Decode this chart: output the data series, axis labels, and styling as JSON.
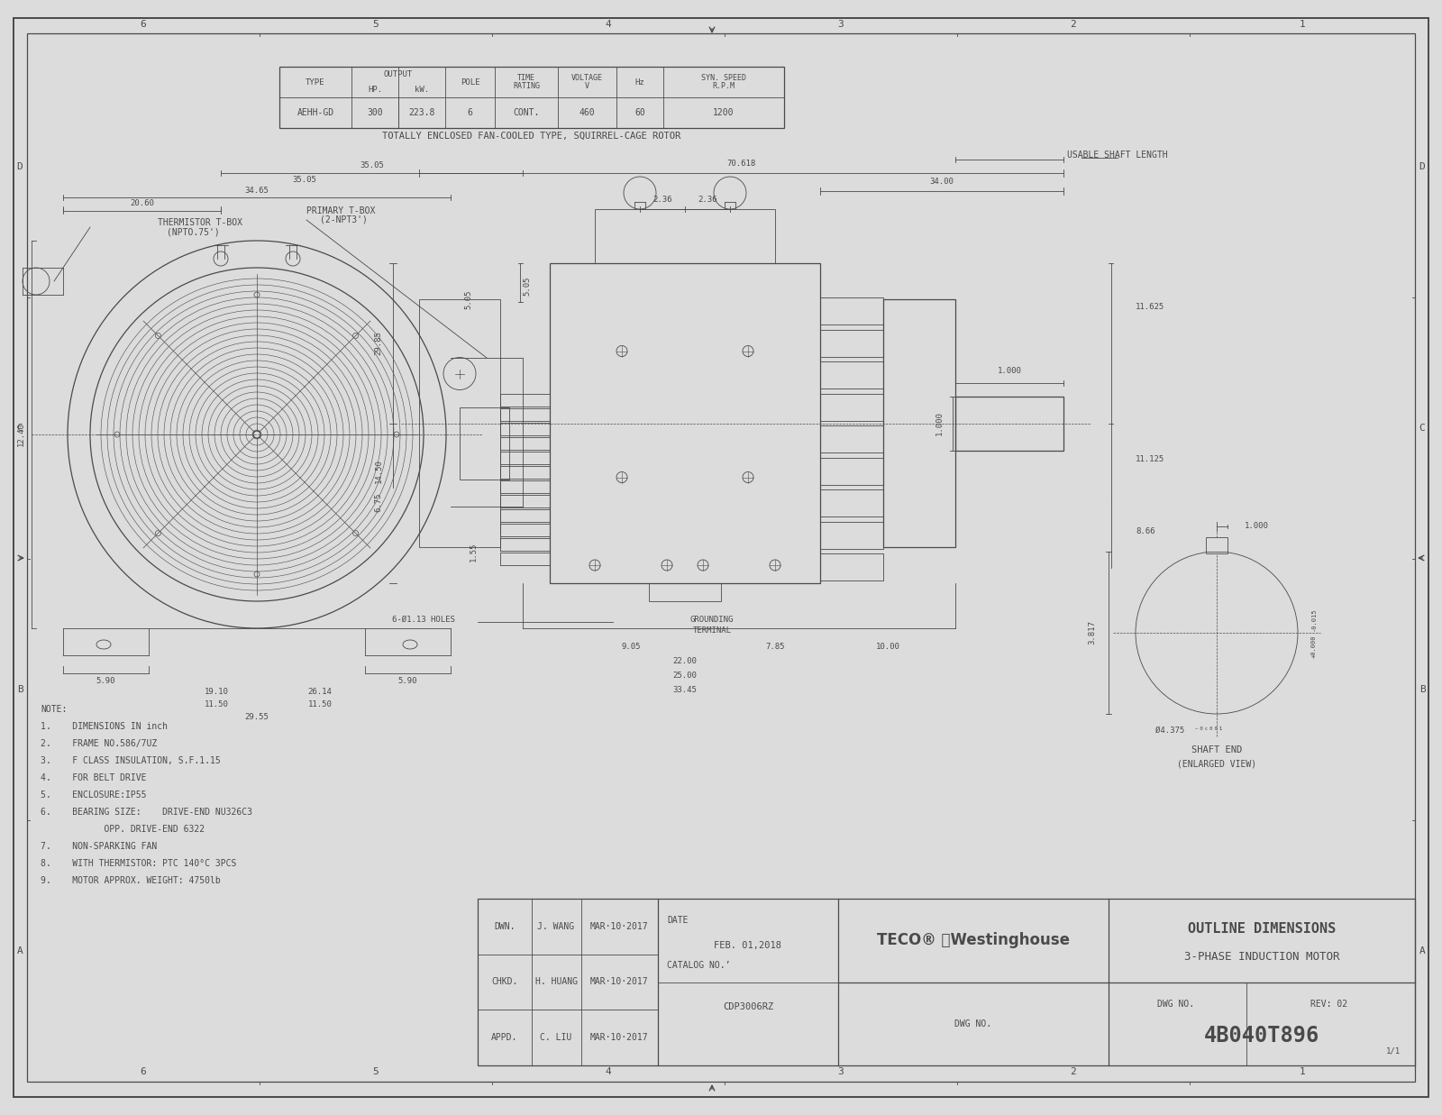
{
  "bg_color": "#dcdcdc",
  "line_color": "#4a4a4a",
  "white": "#ffffff",
  "table_data": {
    "headers_top": [
      "TYPE",
      "OUTPUT",
      "POLE",
      "TIME\nRATING",
      "VOLTAGE\nV",
      "Hz",
      "SYN. SPEED\nR.P.M"
    ],
    "headers_sub": [
      "HP.",
      "kW."
    ],
    "row": [
      "AEHH-GD",
      "300",
      "223.8",
      "6",
      "CONT.",
      "460",
      "60",
      "1200"
    ]
  },
  "motor_subtitle": "TOTALLY ENCLOSED FAN-COOLED TYPE, SQUIRREL-CAGE ROTOR",
  "notes": [
    "NOTE:",
    "1.    DIMENSIONS IN inch",
    "2.    FRAME NO.586/7UZ",
    "3.    F CLASS INSULATION, S.F.1.15",
    "4.    FOR BELT DRIVE",
    "5.    ENCLOSURE:IP55",
    "6.    BEARING SIZE:    DRIVE-END NU326C3",
    "            OPP. DRIVE-END 6322",
    "7.    NON-SPARKING FAN",
    "8.    WITH THERMISTOR: PTC 140°C 3PCS",
    "9.    MOTOR APPROX. WEIGHT: 4750lb"
  ],
  "title_block": {
    "date": "FEB. 01,2018",
    "catalog": "CDP3006RZ",
    "drawn": "J. WANG",
    "checked": "H. HUANG",
    "approved": "C. LIU",
    "date_dwn": "MAR·10·2017",
    "date_chk": "MAR·10·2017",
    "date_app": "MAR·10·2017",
    "dwg_no": "4B040T896",
    "rev": "REV: 02",
    "sheet": "1/1",
    "title1": "OUTLINE DIMENSIONS",
    "title2": "3-PHASE INDUCTION MOTOR"
  },
  "grid_x": [
    30,
    288,
    546,
    804,
    1062,
    1320,
    1570
  ],
  "grid_labels_top": [
    "6",
    "5",
    "4",
    "3",
    "2",
    "1"
  ],
  "grid_y": [
    37,
    327,
    617,
    907,
    1197
  ],
  "grid_labels_side": [
    "A",
    "B",
    "C",
    "D"
  ]
}
